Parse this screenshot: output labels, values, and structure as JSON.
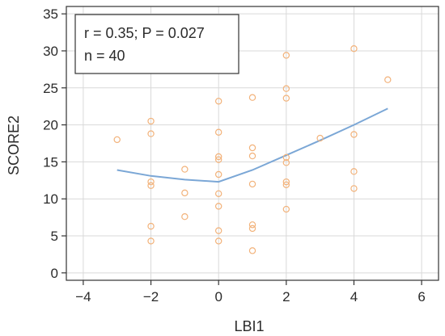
{
  "chart_data": {
    "type": "scatter",
    "title": "",
    "xlabel": "LBI1",
    "ylabel": "SCORE2",
    "xlim": [
      -4.5,
      6.5
    ],
    "ylim": [
      -1,
      36
    ],
    "xticks": [
      -4,
      -2,
      0,
      2,
      4,
      6
    ],
    "yticks": [
      0,
      5,
      10,
      15,
      20,
      25,
      30,
      35
    ],
    "xtick_labels": [
      "−4",
      "−2",
      "0",
      "2",
      "4",
      "6"
    ],
    "ytick_labels": [
      "0",
      "5",
      "10",
      "15",
      "20",
      "25",
      "30",
      "35"
    ],
    "grid": true,
    "annotation": [
      "r = 0.35; P = 0.027",
      "n = 40"
    ],
    "annotation_position": "top-left",
    "colors": {
      "points": "#f2b27a",
      "line": "#7ba7d6",
      "grid": "#d9d9d9",
      "axis": "#333333"
    },
    "points": [
      {
        "x": -3,
        "y": 18.0
      },
      {
        "x": -2,
        "y": 20.5
      },
      {
        "x": -2,
        "y": 18.8
      },
      {
        "x": -2,
        "y": 12.3
      },
      {
        "x": -2,
        "y": 11.8
      },
      {
        "x": -2,
        "y": 6.3
      },
      {
        "x": -2,
        "y": 4.3
      },
      {
        "x": -1,
        "y": 14.0
      },
      {
        "x": -1,
        "y": 10.8
      },
      {
        "x": -1,
        "y": 7.6
      },
      {
        "x": 0,
        "y": 23.2
      },
      {
        "x": 0,
        "y": 19.0
      },
      {
        "x": 0,
        "y": 15.7
      },
      {
        "x": 0,
        "y": 15.3
      },
      {
        "x": 0,
        "y": 13.3
      },
      {
        "x": 0,
        "y": 10.7
      },
      {
        "x": 0,
        "y": 9.0
      },
      {
        "x": 0,
        "y": 5.7
      },
      {
        "x": 0,
        "y": 4.3
      },
      {
        "x": 1,
        "y": 23.7
      },
      {
        "x": 1,
        "y": 16.9
      },
      {
        "x": 1,
        "y": 15.8
      },
      {
        "x": 1,
        "y": 12.0
      },
      {
        "x": 1,
        "y": 6.5
      },
      {
        "x": 1,
        "y": 6.0
      },
      {
        "x": 1,
        "y": 3.0
      },
      {
        "x": 2,
        "y": 29.4
      },
      {
        "x": 2,
        "y": 24.9
      },
      {
        "x": 2,
        "y": 23.6
      },
      {
        "x": 2,
        "y": 15.6
      },
      {
        "x": 2,
        "y": 14.9
      },
      {
        "x": 2,
        "y": 12.3
      },
      {
        "x": 2,
        "y": 11.9
      },
      {
        "x": 2,
        "y": 8.6
      },
      {
        "x": 3,
        "y": 18.2
      },
      {
        "x": 4,
        "y": 30.3
      },
      {
        "x": 4,
        "y": 18.7
      },
      {
        "x": 4,
        "y": 13.7
      },
      {
        "x": 4,
        "y": 11.4
      },
      {
        "x": 5,
        "y": 26.1
      }
    ],
    "series": [
      {
        "type": "line",
        "x": [
          -3,
          -2,
          -1,
          0,
          1,
          2,
          3,
          4,
          5
        ],
        "y": [
          13.9,
          13.1,
          12.6,
          12.3,
          13.9,
          15.9,
          17.9,
          20.0,
          22.2
        ]
      }
    ]
  }
}
